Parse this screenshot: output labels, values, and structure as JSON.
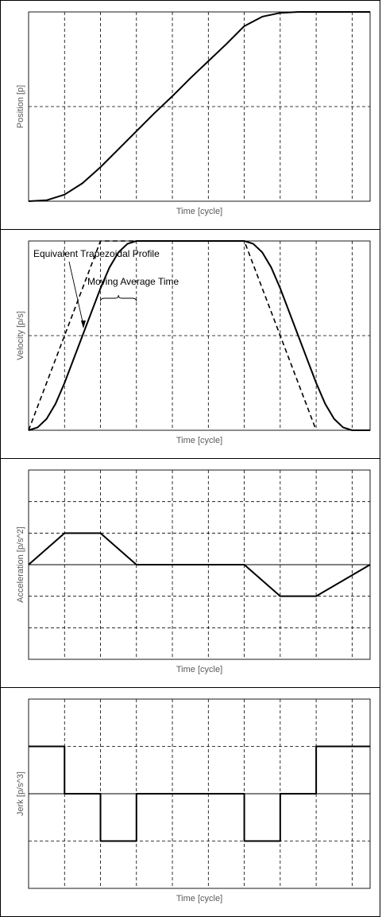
{
  "chart_data": [
    {
      "type": "line",
      "xlabel": "Time [cycle]",
      "ylabel": "Position [p]",
      "xlim": [
        0,
        9.5
      ],
      "ylim": [
        0,
        2
      ],
      "grid": true,
      "series": [
        {
          "style": "solid",
          "x": [
            0,
            0.5,
            1.0,
            1.5,
            2.0,
            2.5,
            3.0,
            3.5,
            4.0,
            4.5,
            5.0,
            5.5,
            6.0,
            6.5,
            7.0,
            7.5,
            8.0,
            8.5,
            9.0,
            9.5
          ],
          "y": [
            0,
            0.01,
            0.07,
            0.19,
            0.36,
            0.55,
            0.74,
            0.93,
            1.11,
            1.3,
            1.48,
            1.66,
            1.85,
            1.95,
            1.99,
            2.0,
            2.0,
            2.0,
            2.0,
            2.0
          ]
        }
      ]
    },
    {
      "type": "line",
      "xlabel": "Time [cycle]",
      "ylabel": "Velocity [p/s]",
      "xlim": [
        0,
        9.5
      ],
      "ylim": [
        0,
        2
      ],
      "grid": true,
      "annotations": {
        "trapezoid_label": "Equivalent Trapezoidal Profile",
        "moving_average_label": "Moving Average Time"
      },
      "series": [
        {
          "style": "solid",
          "x": [
            0,
            0.25,
            0.5,
            0.75,
            1.0,
            1.5,
            2.0,
            2.25,
            2.5,
            2.75,
            3.0,
            6.0,
            6.25,
            6.5,
            6.75,
            7.0,
            7.5,
            8.0,
            8.25,
            8.5,
            8.75,
            9.0,
            9.5
          ],
          "y": [
            0,
            0.03,
            0.12,
            0.28,
            0.5,
            1.0,
            1.5,
            1.72,
            1.88,
            1.97,
            2.0,
            2.0,
            1.97,
            1.88,
            1.72,
            1.5,
            1.0,
            0.5,
            0.28,
            0.12,
            0.03,
            0,
            0
          ]
        },
        {
          "style": "dashed",
          "x": [
            0,
            2.0,
            6.0,
            8.0
          ],
          "y": [
            0,
            2.0,
            2.0,
            0
          ]
        }
      ]
    },
    {
      "type": "line",
      "xlabel": "Time [cycle]",
      "ylabel": "Acceleration [p/s^2]",
      "xlim": [
        0,
        9.5
      ],
      "ylim": [
        -3,
        3
      ],
      "grid": true,
      "series": [
        {
          "style": "solid",
          "x": [
            0,
            1.0,
            2.0,
            3.0,
            6.0,
            7.0,
            8.0,
            9.5
          ],
          "y": [
            0,
            1,
            1,
            0,
            0,
            -1,
            -1,
            0
          ]
        }
      ]
    },
    {
      "type": "line",
      "xlabel": "Time [cycle]",
      "ylabel": "Jerk [p/s^3]",
      "xlim": [
        0,
        9.5
      ],
      "ylim": [
        -2,
        2
      ],
      "grid": true,
      "series": [
        {
          "style": "solid",
          "x": [
            0,
            1.0,
            1.0,
            2.0,
            2.0,
            3.0,
            3.0,
            6.0,
            6.0,
            7.0,
            7.0,
            8.0,
            8.0,
            9.5
          ],
          "y": [
            1,
            1,
            0,
            0,
            -1,
            -1,
            0,
            0,
            -1,
            -1,
            0,
            0,
            1,
            1
          ]
        }
      ]
    }
  ]
}
